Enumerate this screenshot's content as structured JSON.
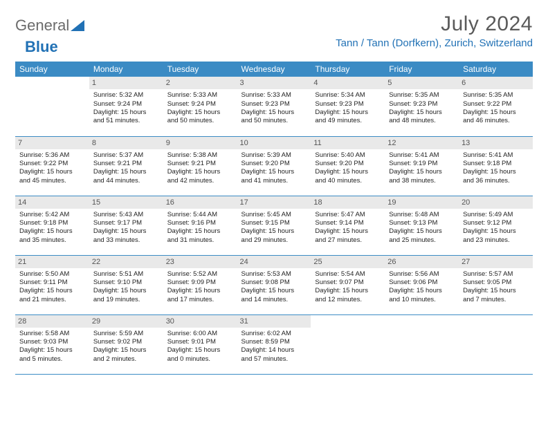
{
  "brand": {
    "part1": "General",
    "part2": "Blue"
  },
  "title": "July 2024",
  "location": "Tann / Tann (Dorfkern), Zurich, Switzerland",
  "header_bg": "#3b8bc4",
  "accent_color": "#2171b5",
  "daynum_bg": "#e9e9e9",
  "weekdays": [
    "Sunday",
    "Monday",
    "Tuesday",
    "Wednesday",
    "Thursday",
    "Friday",
    "Saturday"
  ],
  "weeks": [
    [
      null,
      {
        "n": "1",
        "sr": "5:32 AM",
        "ss": "9:24 PM",
        "dl": "15 hours and 51 minutes."
      },
      {
        "n": "2",
        "sr": "5:33 AM",
        "ss": "9:24 PM",
        "dl": "15 hours and 50 minutes."
      },
      {
        "n": "3",
        "sr": "5:33 AM",
        "ss": "9:23 PM",
        "dl": "15 hours and 50 minutes."
      },
      {
        "n": "4",
        "sr": "5:34 AM",
        "ss": "9:23 PM",
        "dl": "15 hours and 49 minutes."
      },
      {
        "n": "5",
        "sr": "5:35 AM",
        "ss": "9:23 PM",
        "dl": "15 hours and 48 minutes."
      },
      {
        "n": "6",
        "sr": "5:35 AM",
        "ss": "9:22 PM",
        "dl": "15 hours and 46 minutes."
      }
    ],
    [
      {
        "n": "7",
        "sr": "5:36 AM",
        "ss": "9:22 PM",
        "dl": "15 hours and 45 minutes."
      },
      {
        "n": "8",
        "sr": "5:37 AM",
        "ss": "9:21 PM",
        "dl": "15 hours and 44 minutes."
      },
      {
        "n": "9",
        "sr": "5:38 AM",
        "ss": "9:21 PM",
        "dl": "15 hours and 42 minutes."
      },
      {
        "n": "10",
        "sr": "5:39 AM",
        "ss": "9:20 PM",
        "dl": "15 hours and 41 minutes."
      },
      {
        "n": "11",
        "sr": "5:40 AM",
        "ss": "9:20 PM",
        "dl": "15 hours and 40 minutes."
      },
      {
        "n": "12",
        "sr": "5:41 AM",
        "ss": "9:19 PM",
        "dl": "15 hours and 38 minutes."
      },
      {
        "n": "13",
        "sr": "5:41 AM",
        "ss": "9:18 PM",
        "dl": "15 hours and 36 minutes."
      }
    ],
    [
      {
        "n": "14",
        "sr": "5:42 AM",
        "ss": "9:18 PM",
        "dl": "15 hours and 35 minutes."
      },
      {
        "n": "15",
        "sr": "5:43 AM",
        "ss": "9:17 PM",
        "dl": "15 hours and 33 minutes."
      },
      {
        "n": "16",
        "sr": "5:44 AM",
        "ss": "9:16 PM",
        "dl": "15 hours and 31 minutes."
      },
      {
        "n": "17",
        "sr": "5:45 AM",
        "ss": "9:15 PM",
        "dl": "15 hours and 29 minutes."
      },
      {
        "n": "18",
        "sr": "5:47 AM",
        "ss": "9:14 PM",
        "dl": "15 hours and 27 minutes."
      },
      {
        "n": "19",
        "sr": "5:48 AM",
        "ss": "9:13 PM",
        "dl": "15 hours and 25 minutes."
      },
      {
        "n": "20",
        "sr": "5:49 AM",
        "ss": "9:12 PM",
        "dl": "15 hours and 23 minutes."
      }
    ],
    [
      {
        "n": "21",
        "sr": "5:50 AM",
        "ss": "9:11 PM",
        "dl": "15 hours and 21 minutes."
      },
      {
        "n": "22",
        "sr": "5:51 AM",
        "ss": "9:10 PM",
        "dl": "15 hours and 19 minutes."
      },
      {
        "n": "23",
        "sr": "5:52 AM",
        "ss": "9:09 PM",
        "dl": "15 hours and 17 minutes."
      },
      {
        "n": "24",
        "sr": "5:53 AM",
        "ss": "9:08 PM",
        "dl": "15 hours and 14 minutes."
      },
      {
        "n": "25",
        "sr": "5:54 AM",
        "ss": "9:07 PM",
        "dl": "15 hours and 12 minutes."
      },
      {
        "n": "26",
        "sr": "5:56 AM",
        "ss": "9:06 PM",
        "dl": "15 hours and 10 minutes."
      },
      {
        "n": "27",
        "sr": "5:57 AM",
        "ss": "9:05 PM",
        "dl": "15 hours and 7 minutes."
      }
    ],
    [
      {
        "n": "28",
        "sr": "5:58 AM",
        "ss": "9:03 PM",
        "dl": "15 hours and 5 minutes."
      },
      {
        "n": "29",
        "sr": "5:59 AM",
        "ss": "9:02 PM",
        "dl": "15 hours and 2 minutes."
      },
      {
        "n": "30",
        "sr": "6:00 AM",
        "ss": "9:01 PM",
        "dl": "15 hours and 0 minutes."
      },
      {
        "n": "31",
        "sr": "6:02 AM",
        "ss": "8:59 PM",
        "dl": "14 hours and 57 minutes."
      },
      null,
      null,
      null
    ]
  ],
  "labels": {
    "sunrise": "Sunrise:",
    "sunset": "Sunset:",
    "daylight": "Daylight:"
  }
}
